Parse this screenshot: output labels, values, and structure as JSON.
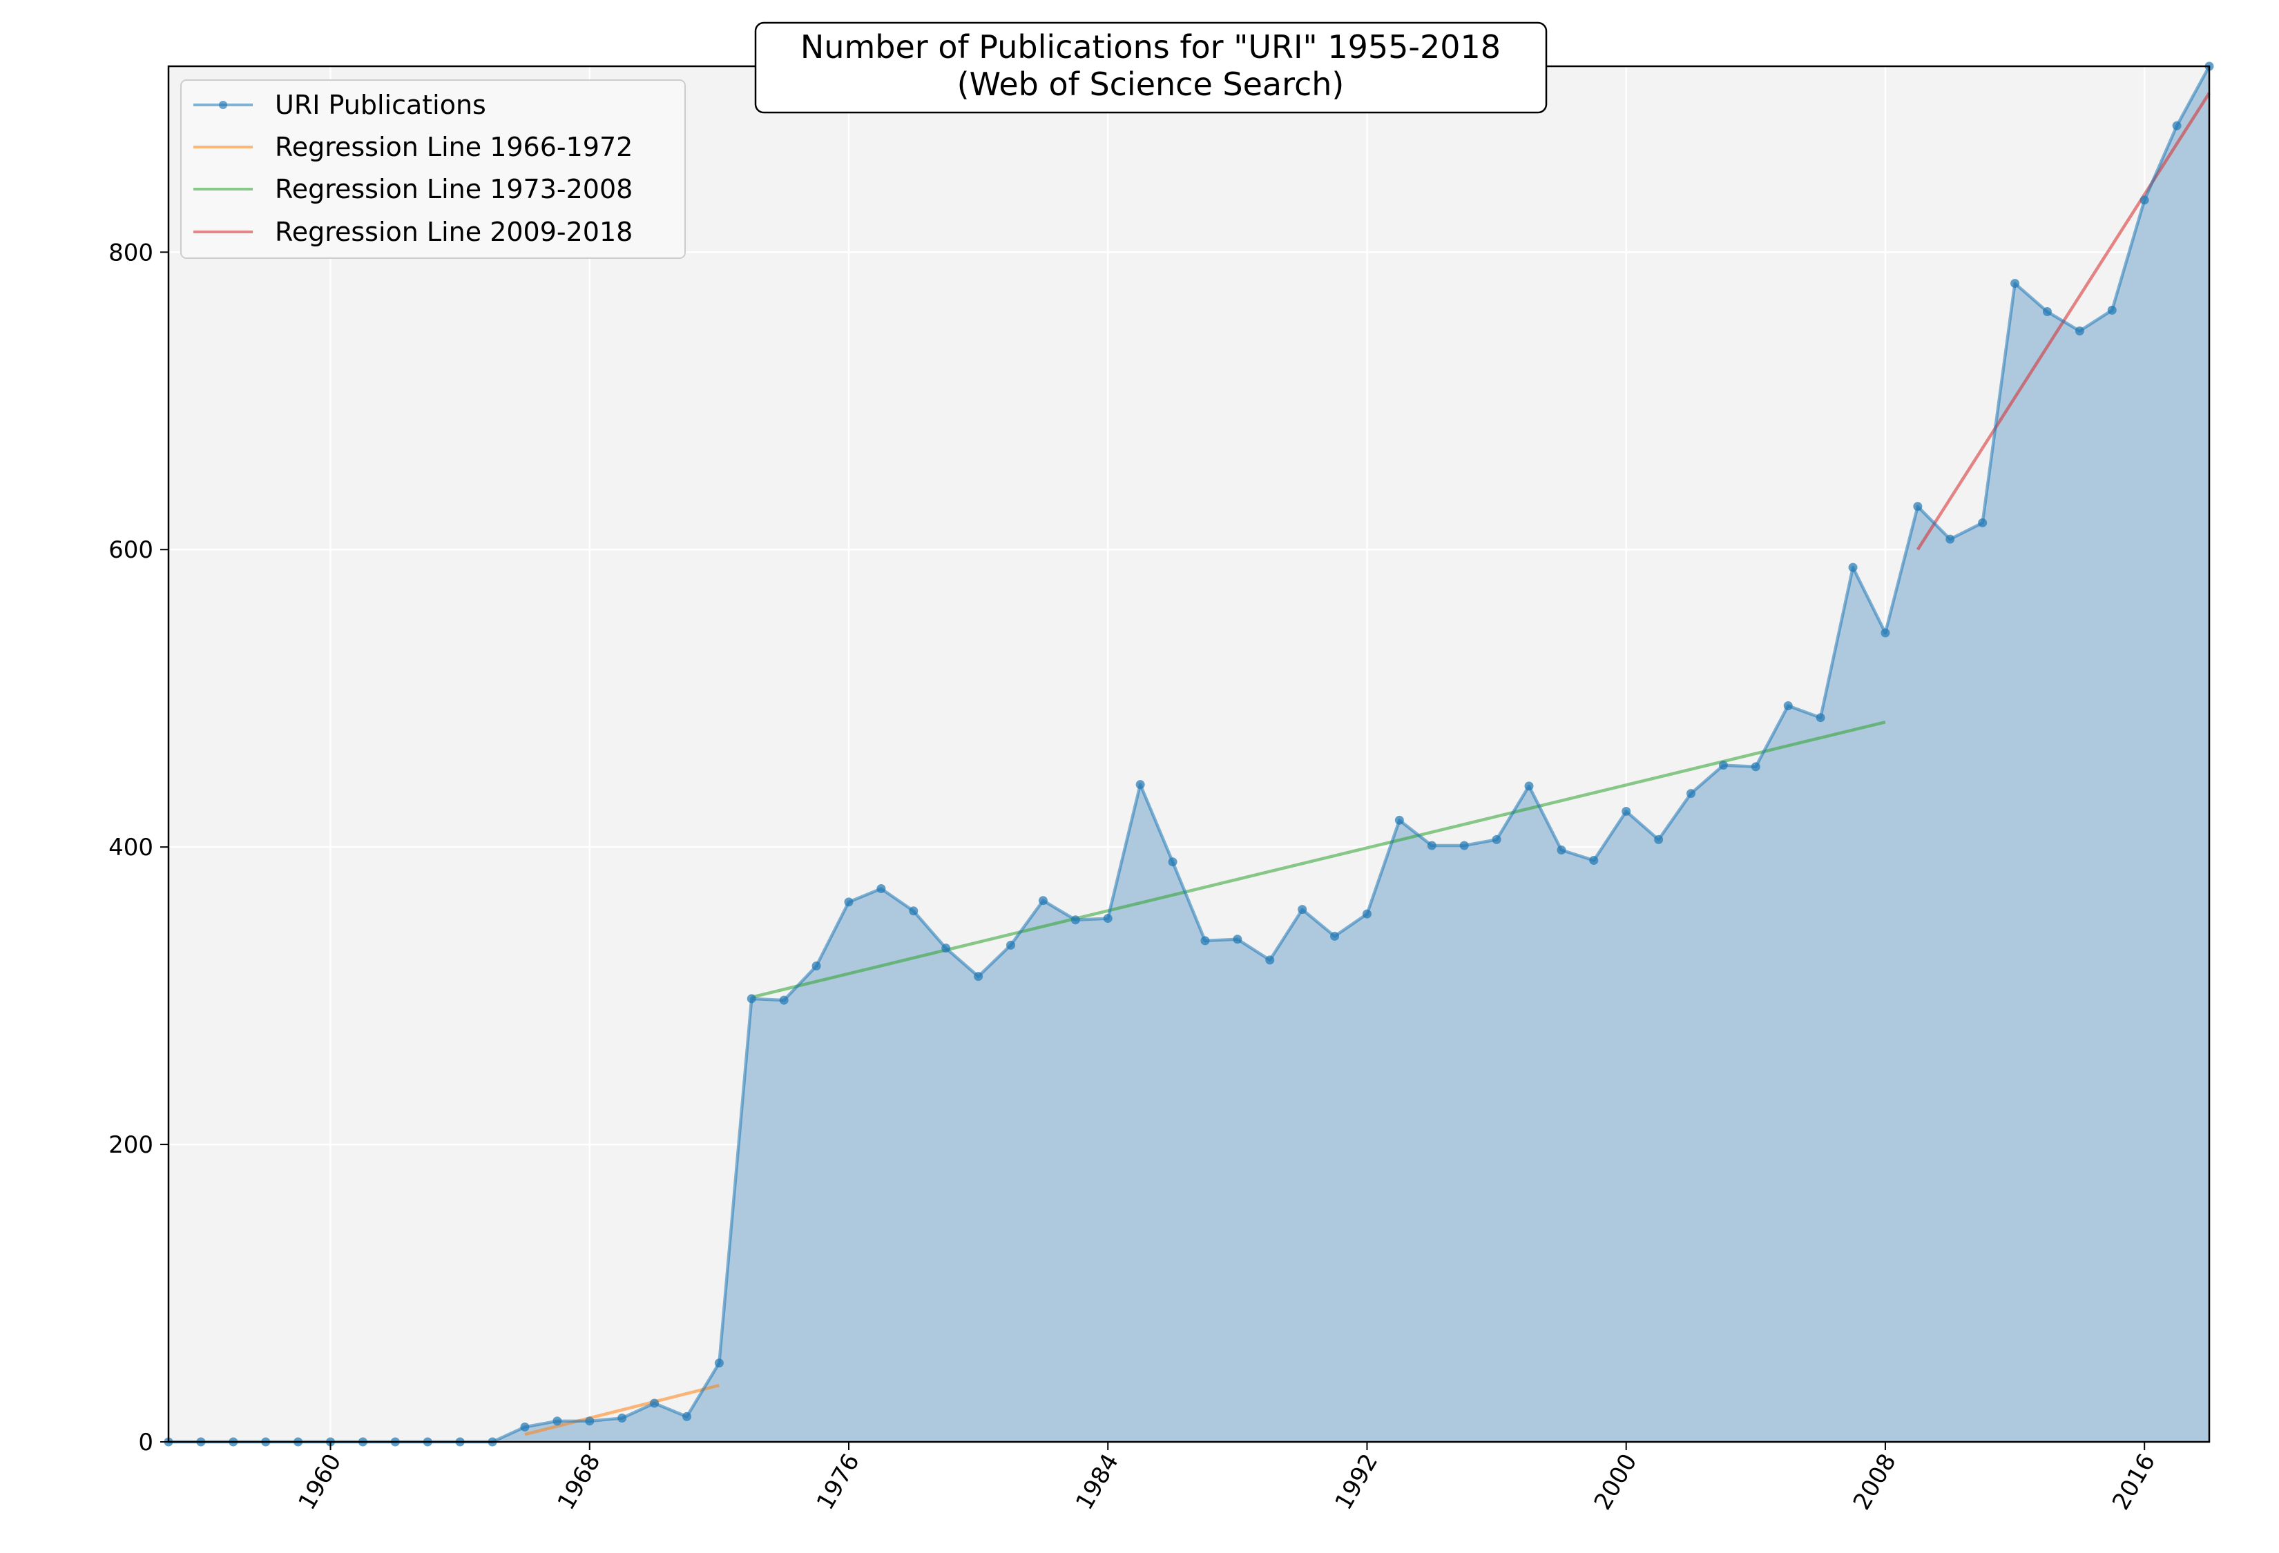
{
  "chart_data": {
    "type": "area",
    "title": "Number of Publications for \"URI\" 1955-2018",
    "subtitle": "(Web of Science Search)",
    "xlabel": "",
    "ylabel": "",
    "xlim": [
      1955,
      2018
    ],
    "ylim": [
      0,
      925
    ],
    "xticks": [
      1960,
      1968,
      1976,
      1984,
      1992,
      2000,
      2008,
      2016
    ],
    "yticks": [
      0,
      200,
      400,
      600,
      800
    ],
    "grid": true,
    "legend_position": "upper-left",
    "series": [
      {
        "name": "URI Publications",
        "color": "#1f77b4",
        "x": [
          1955,
          1956,
          1957,
          1958,
          1959,
          1960,
          1961,
          1962,
          1963,
          1964,
          1965,
          1966,
          1967,
          1968,
          1969,
          1970,
          1971,
          1972,
          1973,
          1974,
          1975,
          1976,
          1977,
          1978,
          1979,
          1980,
          1981,
          1982,
          1983,
          1984,
          1985,
          1986,
          1987,
          1988,
          1989,
          1990,
          1991,
          1992,
          1993,
          1994,
          1995,
          1996,
          1997,
          1998,
          1999,
          2000,
          2001,
          2002,
          2003,
          2004,
          2005,
          2006,
          2007,
          2008,
          2009,
          2010,
          2011,
          2012,
          2013,
          2014,
          2015,
          2016,
          2017,
          2018
        ],
        "y": [
          0,
          0,
          0,
          0,
          0,
          0,
          0,
          0,
          0,
          0,
          0,
          10,
          14,
          14,
          16,
          26,
          17,
          53,
          298,
          297,
          320,
          363,
          372,
          357,
          332,
          313,
          334,
          364,
          351,
          352,
          442,
          390,
          337,
          338,
          324,
          358,
          340,
          355,
          418,
          401,
          401,
          405,
          441,
          398,
          391,
          424,
          405,
          436,
          455,
          454,
          495,
          487,
          588,
          544,
          629,
          607,
          618,
          779,
          760,
          747,
          761,
          835,
          885,
          925
        ]
      }
    ],
    "regressions": [
      {
        "name": "Regression Line 1966-1972",
        "color": "#ff7f0e",
        "x": [
          1966,
          1972
        ],
        "y": [
          5,
          38
        ]
      },
      {
        "name": "Regression Line 1973-2008",
        "color": "#2ca02c",
        "x": [
          1973,
          2008
        ],
        "y": [
          299,
          484
        ]
      },
      {
        "name": "Regression Line 2009-2018",
        "color": "#d62728",
        "x": [
          2009,
          2018
        ],
        "y": [
          600,
          907
        ]
      }
    ]
  }
}
